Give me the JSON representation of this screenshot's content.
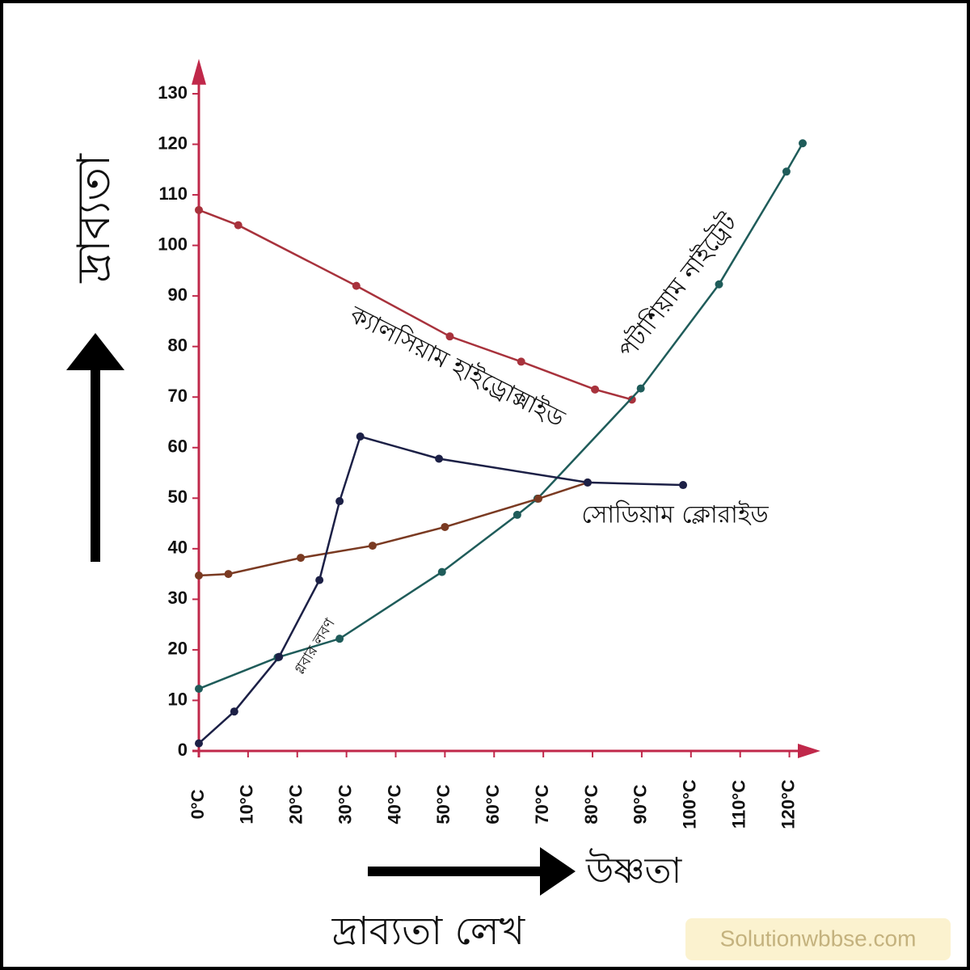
{
  "chart_data": {
    "type": "line",
    "title": "দ্রাব্যতা লেখ",
    "y_label": "দ্রাব্যতা",
    "x_label": "উষ্ণতা",
    "watermark": "Solutionwbbse.com",
    "xlim": [
      0,
      125
    ],
    "ylim": [
      0,
      135
    ],
    "xticks": [
      {
        "value": 0,
        "label": "0°C"
      },
      {
        "value": 10,
        "label": "10°C"
      },
      {
        "value": 20,
        "label": "20°C"
      },
      {
        "value": 30,
        "label": "30°C"
      },
      {
        "value": 40,
        "label": "40°C"
      },
      {
        "value": 50,
        "label": "50°C"
      },
      {
        "value": 60,
        "label": "60°C"
      },
      {
        "value": 70,
        "label": "70°C"
      },
      {
        "value": 80,
        "label": "80°C"
      },
      {
        "value": 90,
        "label": "90°C"
      },
      {
        "value": 100,
        "label": "100°C"
      },
      {
        "value": 110,
        "label": "110°C"
      },
      {
        "value": 120,
        "label": "120°C"
      }
    ],
    "yticks": [
      0,
      10,
      20,
      30,
      40,
      50,
      60,
      70,
      80,
      90,
      100,
      110,
      120,
      130
    ],
    "grid": false,
    "series": [
      {
        "name": "ক্যালসিয়াম হাইড্রোক্সাইড",
        "color": "#a8323c",
        "x": [
          0,
          8,
          32,
          51,
          65.5,
          80.5,
          88
        ],
        "values": [
          107,
          104,
          92,
          82,
          77,
          71.5,
          69.5
        ]
      },
      {
        "name": "পটাশিয়াম নাইট্রেট",
        "color": "#1f5c5a",
        "x": [
          0,
          16,
          28.6,
          49.4,
          64.7,
          68.8,
          89.8,
          105.7,
          119.4,
          122.7
        ],
        "values": [
          12.3,
          18.5,
          22.2,
          35.4,
          46.7,
          49.9,
          71.7,
          92.3,
          114.6,
          120.2
        ]
      },
      {
        "name": "সোডিয়াম ক্লোরাইড",
        "color": "#7a3a22",
        "x": [
          0,
          6,
          20.7,
          35.3,
          50,
          69,
          79
        ],
        "values": [
          34.7,
          35,
          38.2,
          40.6,
          44.3,
          49.9,
          53.1
        ]
      },
      {
        "name": "গ্লবার লবণ",
        "color": "#1c2046",
        "x": [
          0,
          7.2,
          16.3,
          24.5,
          28.6,
          32.8,
          48.8,
          79,
          98.4
        ],
        "values": [
          1.5,
          7.8,
          18.6,
          33.8,
          49.4,
          62.2,
          57.8,
          53.1,
          52.6
        ]
      }
    ]
  }
}
